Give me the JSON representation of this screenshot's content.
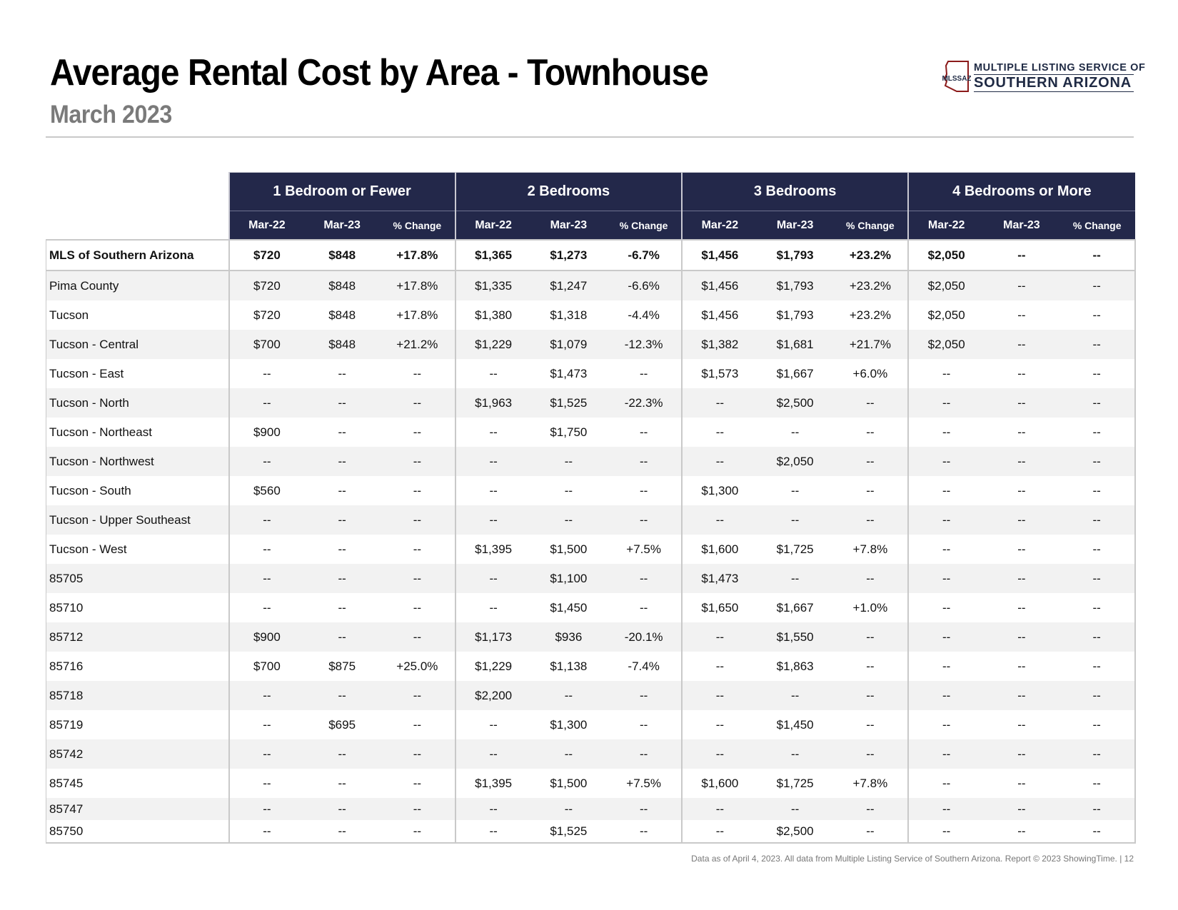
{
  "title": "Average Rental Cost by Area - Townhouse",
  "subtitle": "March 2023",
  "logo": {
    "abbr": "MLSSAZ",
    "line1": "MULTIPLE LISTING SERVICE OF",
    "line2": "SOUTHERN ARIZONA"
  },
  "table": {
    "groups": [
      "1 Bedroom or Fewer",
      "2 Bedrooms",
      "3 Bedrooms",
      "4 Bedrooms or More"
    ],
    "subheaders": [
      "Mar-22",
      "Mar-23",
      "% Change"
    ],
    "rows": [
      {
        "area": "MLS of Southern Arizona",
        "values": [
          "$720",
          "$848",
          "+17.8%",
          "$1,365",
          "$1,273",
          "-6.7%",
          "$1,456",
          "$1,793",
          "+23.2%",
          "$2,050",
          "--",
          "--"
        ]
      },
      {
        "area": "Pima County",
        "values": [
          "$720",
          "$848",
          "+17.8%",
          "$1,335",
          "$1,247",
          "-6.6%",
          "$1,456",
          "$1,793",
          "+23.2%",
          "$2,050",
          "--",
          "--"
        ]
      },
      {
        "area": "Tucson",
        "values": [
          "$720",
          "$848",
          "+17.8%",
          "$1,380",
          "$1,318",
          "-4.4%",
          "$1,456",
          "$1,793",
          "+23.2%",
          "$2,050",
          "--",
          "--"
        ]
      },
      {
        "area": "Tucson - Central",
        "values": [
          "$700",
          "$848",
          "+21.2%",
          "$1,229",
          "$1,079",
          "-12.3%",
          "$1,382",
          "$1,681",
          "+21.7%",
          "$2,050",
          "--",
          "--"
        ]
      },
      {
        "area": "Tucson - East",
        "values": [
          "--",
          "--",
          "--",
          "--",
          "$1,473",
          "--",
          "$1,573",
          "$1,667",
          "+6.0%",
          "--",
          "--",
          "--"
        ]
      },
      {
        "area": "Tucson - North",
        "values": [
          "--",
          "--",
          "--",
          "$1,963",
          "$1,525",
          "-22.3%",
          "--",
          "$2,500",
          "--",
          "--",
          "--",
          "--"
        ]
      },
      {
        "area": "Tucson - Northeast",
        "values": [
          "$900",
          "--",
          "--",
          "--",
          "$1,750",
          "--",
          "--",
          "--",
          "--",
          "--",
          "--",
          "--"
        ]
      },
      {
        "area": "Tucson - Northwest",
        "values": [
          "--",
          "--",
          "--",
          "--",
          "--",
          "--",
          "--",
          "$2,050",
          "--",
          "--",
          "--",
          "--"
        ]
      },
      {
        "area": "Tucson - South",
        "values": [
          "$560",
          "--",
          "--",
          "--",
          "--",
          "--",
          "$1,300",
          "--",
          "--",
          "--",
          "--",
          "--"
        ]
      },
      {
        "area": "Tucson - Upper Southeast",
        "values": [
          "--",
          "--",
          "--",
          "--",
          "--",
          "--",
          "--",
          "--",
          "--",
          "--",
          "--",
          "--"
        ]
      },
      {
        "area": "Tucson - West",
        "values": [
          "--",
          "--",
          "--",
          "$1,395",
          "$1,500",
          "+7.5%",
          "$1,600",
          "$1,725",
          "+7.8%",
          "--",
          "--",
          "--"
        ]
      },
      {
        "area": "85705",
        "values": [
          "--",
          "--",
          "--",
          "--",
          "$1,100",
          "--",
          "$1,473",
          "--",
          "--",
          "--",
          "--",
          "--"
        ]
      },
      {
        "area": "85710",
        "values": [
          "--",
          "--",
          "--",
          "--",
          "$1,450",
          "--",
          "$1,650",
          "$1,667",
          "+1.0%",
          "--",
          "--",
          "--"
        ]
      },
      {
        "area": "85712",
        "values": [
          "$900",
          "--",
          "--",
          "$1,173",
          "$936",
          "-20.1%",
          "--",
          "$1,550",
          "--",
          "--",
          "--",
          "--"
        ]
      },
      {
        "area": "85716",
        "values": [
          "$700",
          "$875",
          "+25.0%",
          "$1,229",
          "$1,138",
          "-7.4%",
          "--",
          "$1,863",
          "--",
          "--",
          "--",
          "--"
        ]
      },
      {
        "area": "85718",
        "values": [
          "--",
          "--",
          "--",
          "$2,200",
          "--",
          "--",
          "--",
          "--",
          "--",
          "--",
          "--",
          "--"
        ]
      },
      {
        "area": "85719",
        "values": [
          "--",
          "$695",
          "--",
          "--",
          "$1,300",
          "--",
          "--",
          "$1,450",
          "--",
          "--",
          "--",
          "--"
        ]
      },
      {
        "area": "85742",
        "values": [
          "--",
          "--",
          "--",
          "--",
          "--",
          "--",
          "--",
          "--",
          "--",
          "--",
          "--",
          "--"
        ]
      },
      {
        "area": "85745",
        "values": [
          "--",
          "--",
          "--",
          "$1,395",
          "$1,500",
          "+7.5%",
          "$1,600",
          "$1,725",
          "+7.8%",
          "--",
          "--",
          "--"
        ]
      },
      {
        "area": "85747",
        "values": [
          "--",
          "--",
          "--",
          "--",
          "--",
          "--",
          "--",
          "--",
          "--",
          "--",
          "--",
          "--"
        ]
      },
      {
        "area": "85750",
        "values": [
          "--",
          "--",
          "--",
          "--",
          "$1,525",
          "--",
          "--",
          "$2,500",
          "--",
          "--",
          "--",
          "--"
        ]
      }
    ]
  },
  "footer": "Data as of April 4, 2023. All data from Multiple Listing Service of Southern Arizona. Report © 2023 ShowingTime. |  12"
}
